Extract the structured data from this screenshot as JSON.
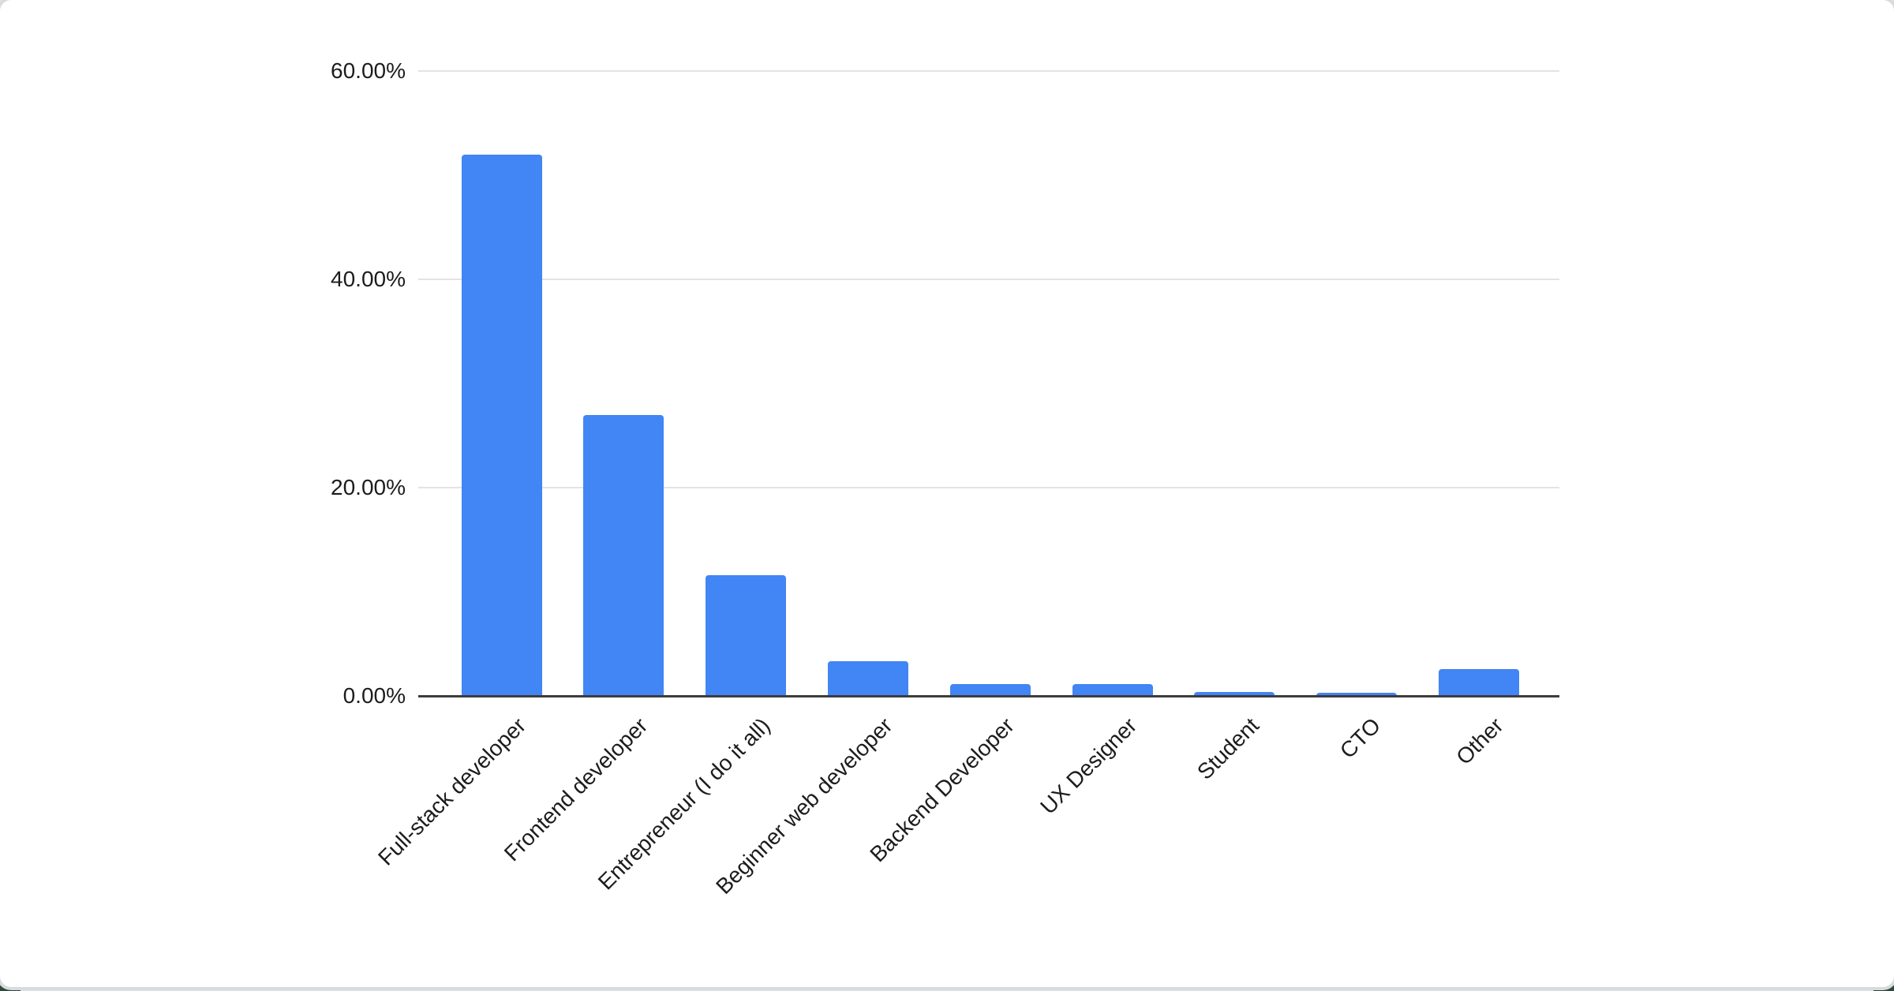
{
  "chart_data": {
    "type": "bar",
    "categories": [
      "Full-stack developer",
      "Frontend developer",
      "Entrepreneur (I do it all)",
      "Beginner web developer",
      "Backend Developer",
      "UX Designer",
      "Student",
      "CTO",
      "Other"
    ],
    "values": [
      52,
      27,
      11.6,
      3.3,
      1.1,
      1.1,
      0.4,
      0.3,
      2.6
    ],
    "value_unit": "%",
    "ylim": [
      0,
      60
    ],
    "yticks": [
      {
        "value": 0,
        "label": "0.00%"
      },
      {
        "value": 20,
        "label": "20.00%"
      },
      {
        "value": 40,
        "label": "40.00%"
      },
      {
        "value": 60,
        "label": "60.00%"
      }
    ],
    "grid": "horizontal",
    "legend_position": "none",
    "bar_color": "#4285F4",
    "axis_line_color": "#3c3c3c",
    "gridline_color": "#e3e3e3",
    "tick_label_color": "#1c1c1c",
    "x_label_rotation_deg": -45
  }
}
